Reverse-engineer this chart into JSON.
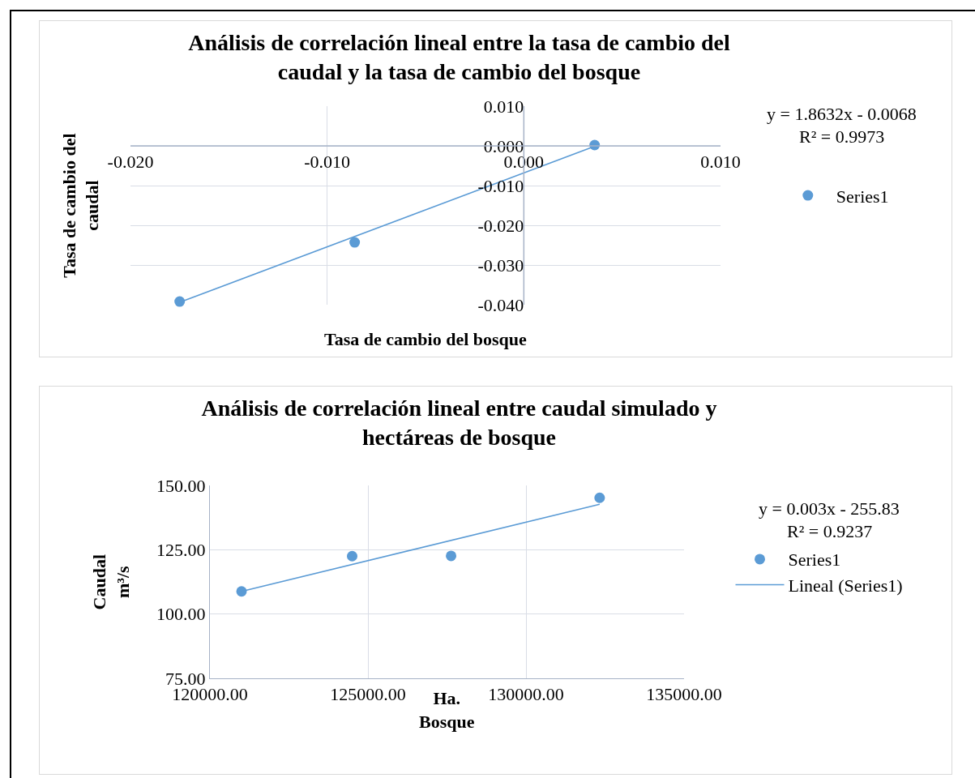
{
  "chart_data": [
    {
      "type": "scatter",
      "title": "Análisis de correlación lineal entre la tasa de cambio del\ncaudal y la tasa de cambio del bosque",
      "xlabel": "Tasa de cambio del bosque",
      "ylabel": "Tasa de cambio del\ncaudal",
      "x": [
        -0.0175,
        -0.0086,
        0.0036
      ],
      "series": [
        {
          "name": "Series1",
          "color": "#5b9bd5",
          "values": [
            -0.0392,
            -0.0243,
            0.0002
          ]
        },
        {
          "type": "line",
          "marker": "none",
          "color": "#5b9bd5",
          "x": [
            -0.0175,
            0.0036
          ],
          "values": [
            -0.0394,
            -0.0001
          ]
        }
      ],
      "xlim": [
        -0.02,
        0.01
      ],
      "xticks": [
        {
          "value": -0.02,
          "label": "-0.020"
        },
        {
          "value": -0.01,
          "label": "-0.010"
        },
        {
          "value": 0,
          "label": "0.000"
        },
        {
          "value": 0.01,
          "label": "0.010"
        }
      ],
      "ylim": [
        -0.04,
        0.01
      ],
      "yticks": [
        {
          "value": -0.04,
          "label": "-0.040"
        },
        {
          "value": -0.03,
          "label": "-0.030"
        },
        {
          "value": -0.02,
          "label": "-0.020"
        },
        {
          "value": -0.01,
          "label": "-0.010"
        },
        {
          "value": 0,
          "label": "0.000"
        },
        {
          "value": 0.01,
          "label": "0.010"
        }
      ],
      "annotations": [
        "y = 1.8632x - 0.0068",
        "R² = 0.9973"
      ],
      "grid": true,
      "legend": "right",
      "marker": "circle"
    },
    {
      "type": "scatter",
      "title": "Análisis de correlación lineal entre caudal simulado y\nhectáreas de bosque",
      "xlabel": "Ha.\nBosque",
      "ylabel": "Caudal\nm³/s",
      "x": [
        121000,
        124500,
        127630,
        132330
      ],
      "series": [
        {
          "name": "Series1",
          "color": "#5b9bd5",
          "values": [
            108.8,
            122.5,
            122.6,
            145.2
          ]
        },
        {
          "name": "Lineal (Series1)",
          "type": "line",
          "marker": "none",
          "color": "#5b9bd5",
          "x": [
            121000,
            132330
          ],
          "values": [
            108.8,
            142.7
          ]
        }
      ],
      "xlim": [
        120000,
        135000
      ],
      "xticks": [
        {
          "value": 120000,
          "label": "120000.00"
        },
        {
          "value": 125000,
          "label": "125000.00"
        },
        {
          "value": 130000,
          "label": "130000.00"
        },
        {
          "value": 135000,
          "label": "135000.00"
        }
      ],
      "ylim": [
        75,
        150
      ],
      "yticks": [
        {
          "value": 75,
          "label": "75.00"
        },
        {
          "value": 100,
          "label": "100.00"
        },
        {
          "value": 125,
          "label": "125.00"
        },
        {
          "value": 150,
          "label": "150.00"
        }
      ],
      "annotations": [
        "y = 0.003x - 255.83",
        "R² = 0.9237"
      ],
      "grid": true,
      "legend": "right",
      "marker": "circle"
    }
  ]
}
